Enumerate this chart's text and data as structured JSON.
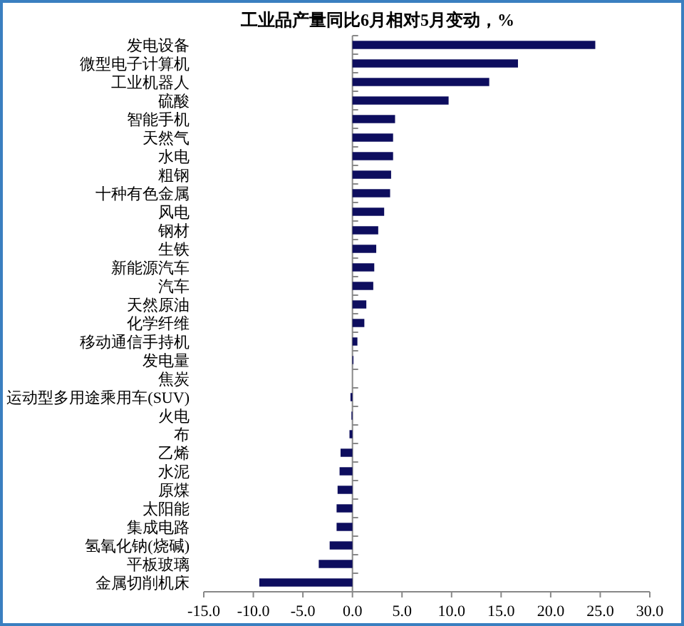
{
  "chart_data": {
    "type": "bar",
    "orientation": "horizontal",
    "title": "工业品产量同比6月相对5月变动，%",
    "categories": [
      "发电设备",
      "微型电子计算机",
      "工业机器人",
      "硫酸",
      "智能手机",
      "天然气",
      "水电",
      "粗钢",
      "十种有色金属",
      "风电",
      "钢材",
      "生铁",
      "新能源汽车",
      "汽车",
      "天然原油",
      "化学纤维",
      "移动通信手持机",
      "发电量",
      "焦炭",
      "运动型多用途乘用车(SUV)",
      "火电",
      "布",
      "乙烯",
      "水泥",
      "原煤",
      "太阳能",
      "集成电路",
      "氢氧化钠(烧碱)",
      "平板玻璃",
      "金属切削机床"
    ],
    "values": [
      24.5,
      16.7,
      13.8,
      9.7,
      4.3,
      4.1,
      4.1,
      3.9,
      3.8,
      3.2,
      2.6,
      2.4,
      2.2,
      2.1,
      1.4,
      1.2,
      0.5,
      0.1,
      0.0,
      -0.2,
      -0.1,
      -0.3,
      -1.2,
      -1.3,
      -1.5,
      -1.6,
      -1.6,
      -2.3,
      -3.4,
      -9.4
    ],
    "color": "#0d0d5e",
    "xlim": [
      -15,
      30
    ],
    "xticks": [
      {
        "value": -15,
        "label": "-15.0"
      },
      {
        "value": -10,
        "label": "-10.0"
      },
      {
        "value": -5,
        "label": "-5.0"
      },
      {
        "value": 0,
        "label": "0.0"
      },
      {
        "value": 5,
        "label": "5.0"
      },
      {
        "value": 10,
        "label": "10.0"
      },
      {
        "value": 15,
        "label": "15.0"
      },
      {
        "value": 20,
        "label": "20.0"
      },
      {
        "value": 25,
        "label": "25.0"
      },
      {
        "value": 30,
        "label": "30.0"
      }
    ]
  }
}
